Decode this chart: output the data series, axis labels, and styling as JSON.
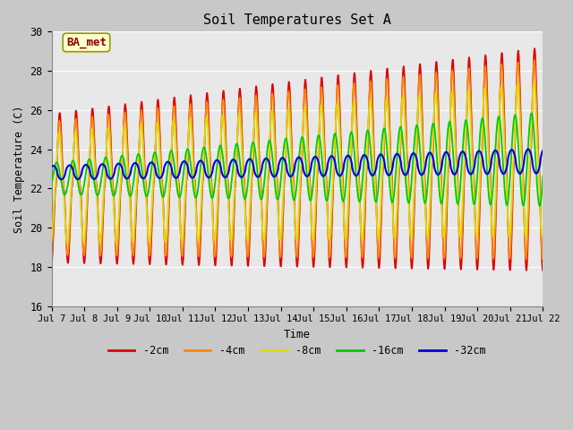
{
  "title": "Soil Temperatures Set A",
  "xlabel": "Time",
  "ylabel": "Soil Temperature (C)",
  "ylim": [
    16,
    30
  ],
  "xlim": [
    0,
    15
  ],
  "fig_bg_color": "#c8c8c8",
  "plot_bg_color": "#e8e8e8",
  "annotation_text": "BA_met",
  "annotation_color": "#8b0000",
  "annotation_bg": "#ffffcc",
  "line_colors": {
    "-2cm": "#dd0000",
    "-4cm": "#ff8800",
    "-8cm": "#dddd00",
    "-16cm": "#00cc00",
    "-32cm": "#0000dd"
  },
  "legend_labels": [
    "-2cm",
    "-4cm",
    "-8cm",
    "-16cm",
    "-32cm"
  ],
  "x_tick_labels": [
    "Jul 7",
    "Jul 8",
    "Jul 9",
    "Jul 10",
    "Jul 11",
    "Jul 12",
    "Jul 13",
    "Jul 14",
    "Jul 15",
    "Jul 16",
    "Jul 17",
    "Jul 18",
    "Jul 19",
    "Jul 20",
    "Jul 21",
    "Jul 22"
  ],
  "grid_color": "#ffffff",
  "yticks": [
    16,
    18,
    20,
    22,
    24,
    26,
    28,
    30
  ]
}
